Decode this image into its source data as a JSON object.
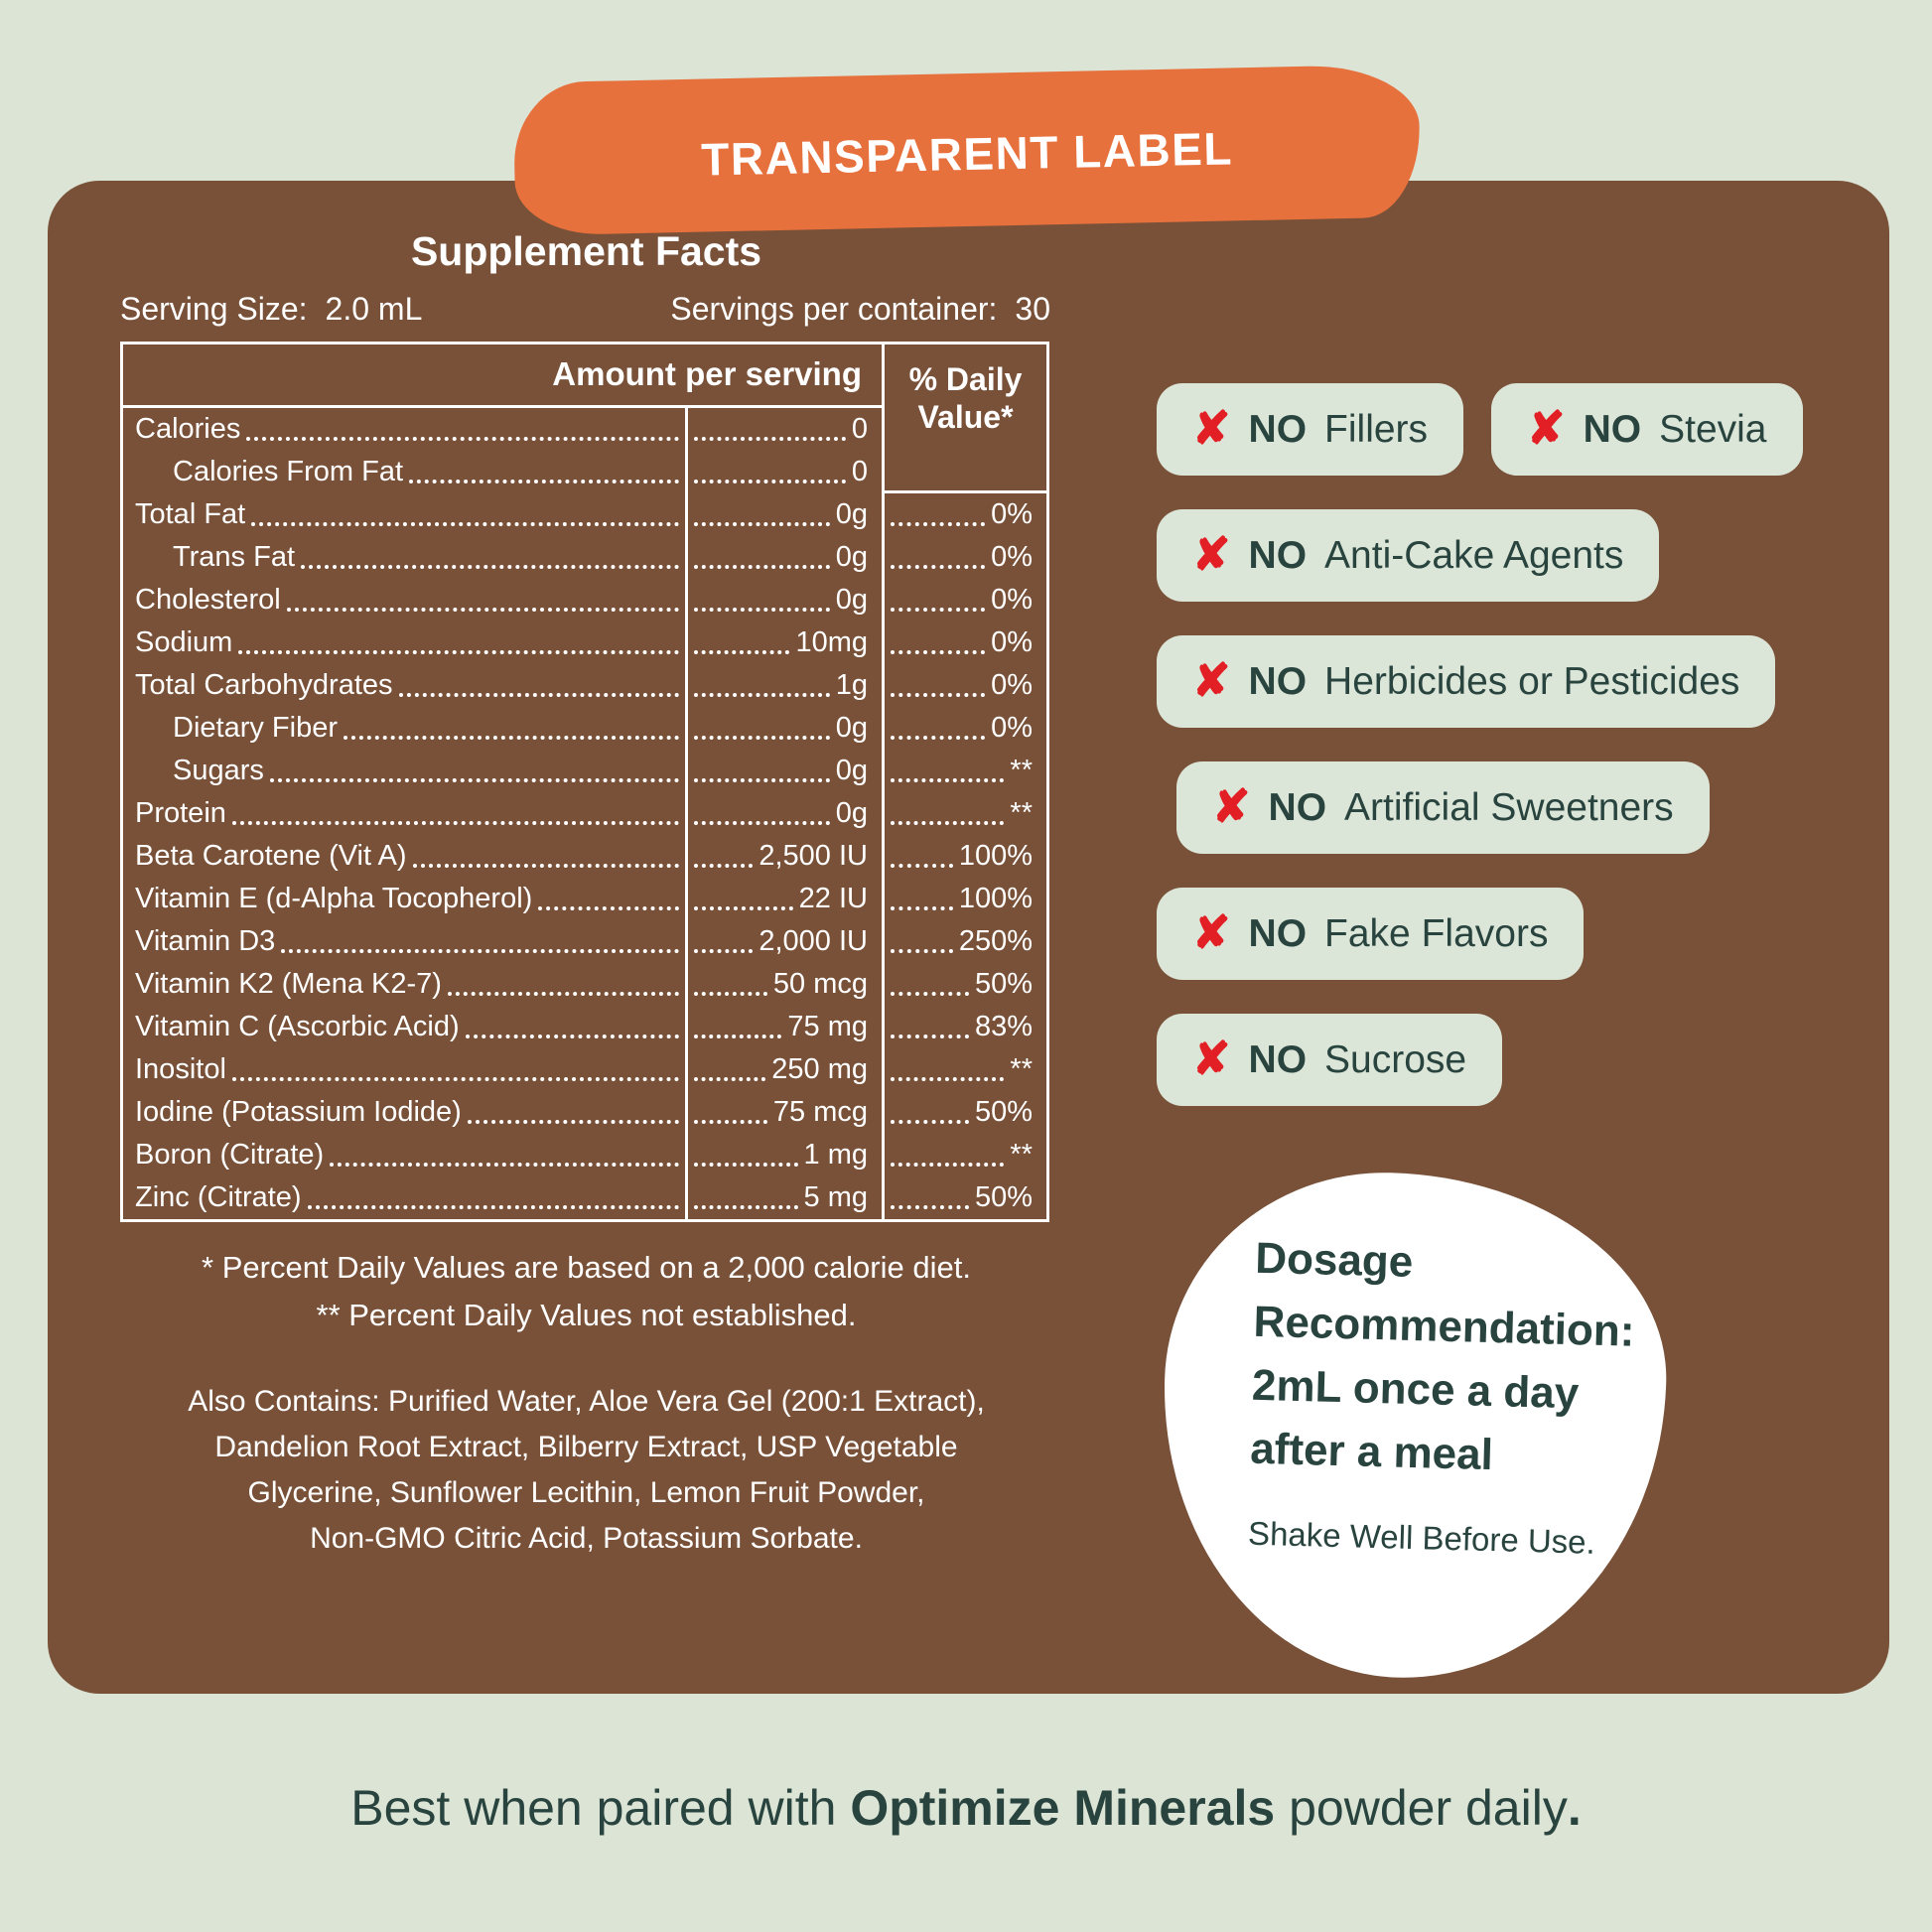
{
  "colors": {
    "bg": "#dce4d6",
    "brown": "#785138",
    "orange": "#e7713d",
    "red": "#e21f25",
    "teal": "#29443f",
    "white": "#ffffff",
    "sage": "#dce6d8"
  },
  "banner": {
    "label": "TRANSPARENT LABEL"
  },
  "supplement_facts": {
    "title": "Supplement Facts",
    "serving_size_label": "Serving Size:",
    "serving_size_value": "2.0 mL",
    "servings_label": "Servings per container:",
    "servings_value": "30",
    "table": {
      "amount_header": "Amount per serving",
      "dv_header": "% Daily Value*",
      "rows": [
        {
          "label": "Calories",
          "amount": "0",
          "dv": ""
        },
        {
          "label": "Calories From Fat",
          "amount": "0",
          "dv": ""
        },
        {
          "label": "Total Fat",
          "amount": "0g",
          "dv": "0%"
        },
        {
          "label": "Trans Fat",
          "amount": "0g",
          "dv": "0%"
        },
        {
          "label": "Cholesterol",
          "amount": "0g",
          "dv": "0%"
        },
        {
          "label": "Sodium",
          "amount": "10mg",
          "dv": "0%"
        },
        {
          "label": "Total Carbohydrates",
          "amount": "1g",
          "dv": "0%"
        },
        {
          "label": "Dietary Fiber",
          "amount": "0g",
          "dv": "0%"
        },
        {
          "label": "Sugars",
          "amount": "0g",
          "dv": "**"
        },
        {
          "label": "Protein",
          "amount": "0g",
          "dv": "**"
        },
        {
          "label": "Beta Carotene (Vit A)",
          "amount": "2,500 IU",
          "dv": "100%"
        },
        {
          "label": "Vitamin E (d-Alpha Tocopherol)",
          "amount": "22 IU",
          "dv": "100%"
        },
        {
          "label": "Vitamin D3",
          "amount": "2,000 IU",
          "dv": "250%"
        },
        {
          "label": "Vitamin K2 (Mena K2-7)",
          "amount": "50 mcg",
          "dv": "50%"
        },
        {
          "label": "Vitamin C (Ascorbic Acid)",
          "amount": "75 mg",
          "dv": "83%"
        },
        {
          "label": "Inositol",
          "amount": "250 mg",
          "dv": "**"
        },
        {
          "label": "Iodine (Potassium Iodide)",
          "amount": "75 mcg",
          "dv": "50%"
        },
        {
          "label": "Boron (Citrate)",
          "amount": "1 mg",
          "dv": "**"
        },
        {
          "label": "Zinc (Citrate)",
          "amount": "5 mg",
          "dv": "50%"
        }
      ]
    },
    "footnote1": "* Percent Daily Values are based on a 2,000 calorie diet.",
    "footnote2": "** Percent Daily Values not established.",
    "also_contains_lines": [
      "Also Contains: Purified Water, Aloe Vera Gel (200:1 Extract),",
      "Dandelion Root Extract, Bilberry Extract, USP Vegetable",
      "Glycerine, Sunflower Lecithin, Lemon Fruit Powder,",
      "Non-GMO Citric Acid, Potassium Sorbate."
    ]
  },
  "badges": {
    "x_mark": "✘",
    "items": [
      {
        "no": "NO",
        "text": "Fillers"
      },
      {
        "no": "NO",
        "text": "Stevia"
      },
      {
        "no": "NO",
        "text": "Anti-Cake Agents"
      },
      {
        "no": "NO",
        "text": "Herbicides or Pesticides"
      },
      {
        "no": "NO",
        "text": "Artificial Sweetners"
      },
      {
        "no": "NO",
        "text": "Fake Flavors"
      },
      {
        "no": "NO",
        "text": "Sucrose"
      }
    ]
  },
  "dosage": {
    "heading_lines": [
      "Dosage",
      "Recommendation:",
      "2mL once a day",
      "after a meal"
    ],
    "note": "Shake Well Before Use."
  },
  "tagline": {
    "prefix": "Best when paired with ",
    "bold": "Optimize Minerals",
    "suffix": " powder daily",
    "period": "."
  }
}
